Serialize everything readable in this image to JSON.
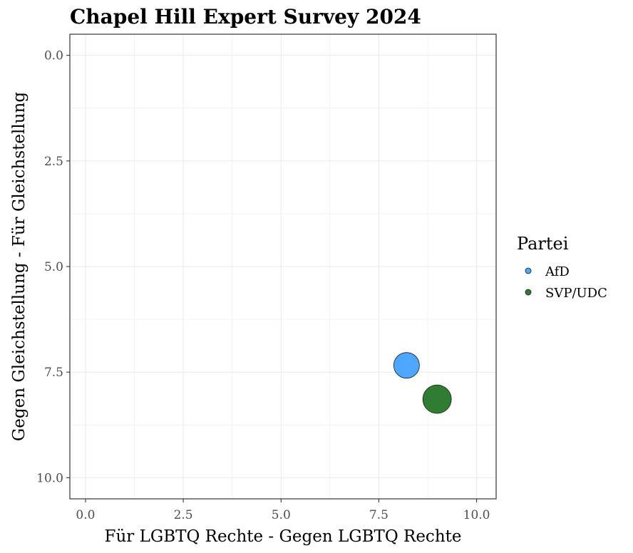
{
  "chart_data": {
    "type": "scatter",
    "title": "Chapel Hill Expert Survey 2024",
    "xlabel": "Für LGBTQ Rechte - Gegen LGBTQ Rechte",
    "ylabel": "Gegen Gleichstellung - Für Gleichstellung",
    "xlim": [
      -0.4,
      10.5
    ],
    "ylim": [
      10.5,
      -0.5
    ],
    "y_reversed": true,
    "x_ticks": [
      "0.0",
      "2.5",
      "5.0",
      "7.5",
      "10.0"
    ],
    "x_tick_values": [
      0,
      2.5,
      5,
      7.5,
      10
    ],
    "y_ticks": [
      "0.0",
      "2.5",
      "5.0",
      "7.5",
      "10.0"
    ],
    "y_tick_values": [
      0,
      2.5,
      5,
      7.5,
      10
    ],
    "grid": true,
    "legend": {
      "title": "Partei",
      "position": "right",
      "entries": [
        {
          "label": "AfD",
          "color": "#4da6ff"
        },
        {
          "label": "SVP/UDC",
          "color": "#2e7d32"
        }
      ]
    },
    "series": [
      {
        "name": "AfD",
        "color": "#4da6ff",
        "points": [
          {
            "x": 8.21,
            "y": 7.34
          }
        ]
      },
      {
        "name": "SVP/UDC",
        "color": "#2e7d32",
        "points": [
          {
            "x": 8.99,
            "y": 8.14
          }
        ]
      }
    ]
  }
}
